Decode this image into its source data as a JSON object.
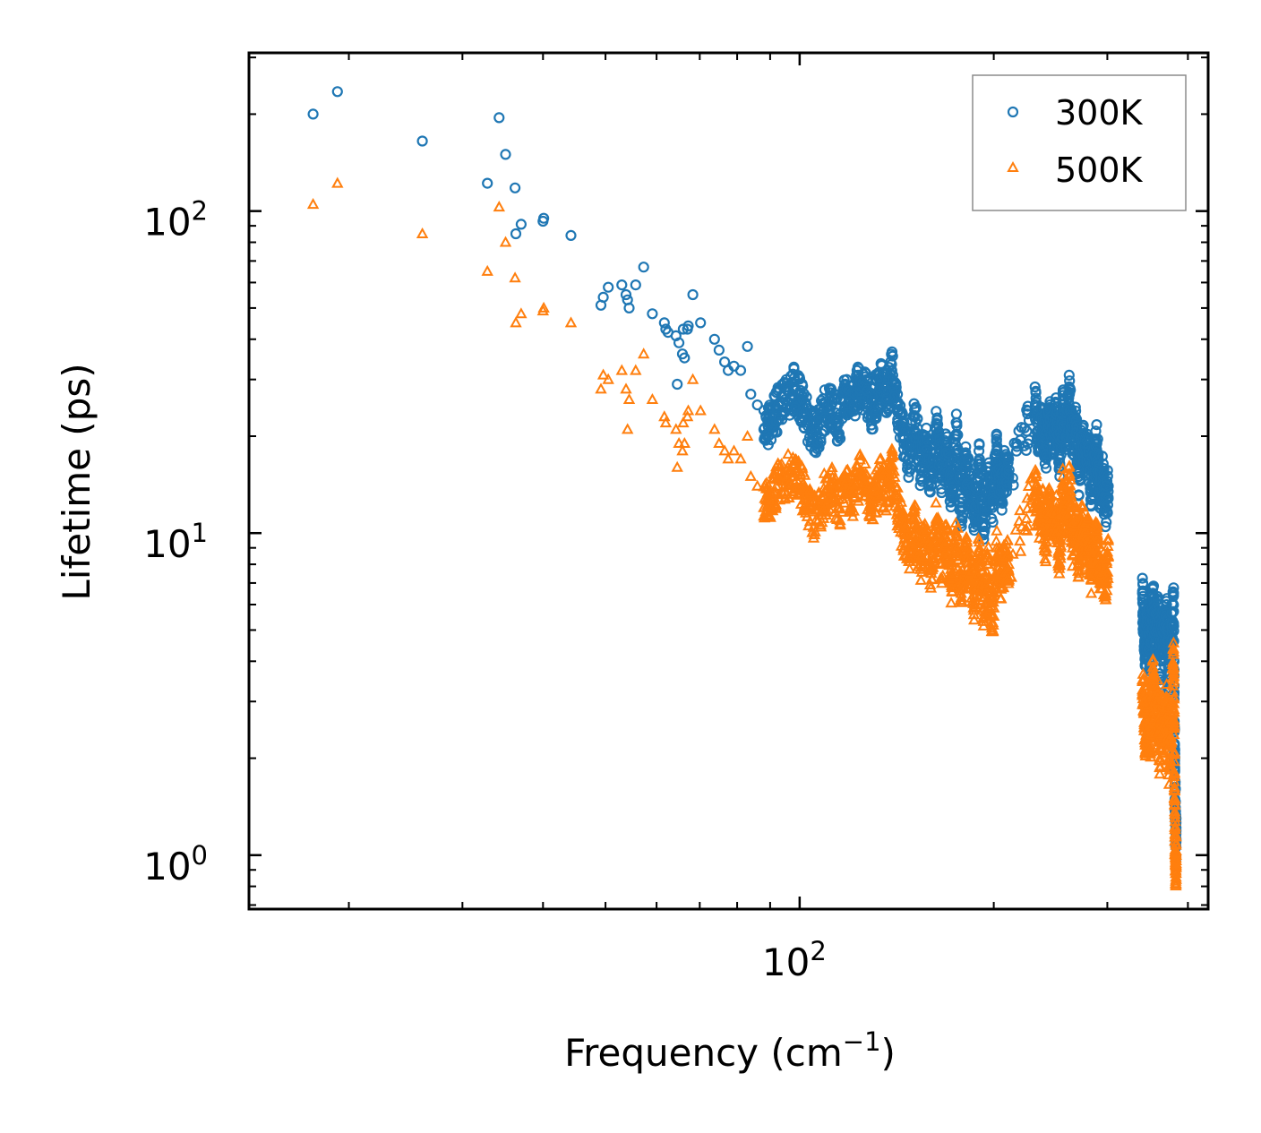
{
  "chart_data": {
    "type": "scatter",
    "scale": {
      "x": "log",
      "y": "log"
    },
    "xlabel": {
      "base": "Frequency (cm",
      "sup": "−1",
      "tail": ")"
    },
    "ylabel": "Lifetime (ps)",
    "xlim": [
      14,
      430
    ],
    "ylim": [
      0.68,
      310
    ],
    "x_major_ticks": [
      {
        "value": 100,
        "base": "10",
        "exp": "2"
      }
    ],
    "y_major_ticks": [
      {
        "value": 1,
        "base": "10",
        "exp": "0"
      },
      {
        "value": 10,
        "base": "10",
        "exp": "1"
      },
      {
        "value": 100,
        "base": "10",
        "exp": "2"
      }
    ],
    "legend": {
      "position": "top-right",
      "entries": [
        "300K",
        "500K"
      ]
    },
    "series": [
      {
        "name": "300K",
        "marker": "circle",
        "color": "#1f77b4",
        "points": [
          [
            17.6,
            200
          ],
          [
            19.2,
            235
          ],
          [
            26.0,
            165
          ],
          [
            32.8,
            122
          ],
          [
            34.2,
            195
          ],
          [
            35.0,
            150
          ],
          [
            36.2,
            118
          ],
          [
            36.3,
            85
          ],
          [
            37.0,
            91
          ],
          [
            40.0,
            93
          ],
          [
            40.1,
            95
          ],
          [
            44.2,
            84
          ],
          [
            49.2,
            51
          ],
          [
            49.6,
            54
          ],
          [
            50.5,
            58
          ],
          [
            53.0,
            59
          ],
          [
            53.8,
            55
          ],
          [
            54.1,
            53
          ],
          [
            54.4,
            50
          ],
          [
            55.7,
            59
          ],
          [
            57.3,
            67
          ],
          [
            59.1,
            48
          ],
          [
            61.7,
            45
          ],
          [
            62.0,
            43
          ],
          [
            62.5,
            42
          ],
          [
            64.6,
            29
          ],
          [
            64.3,
            41
          ],
          [
            65.0,
            39
          ],
          [
            66.0,
            43
          ],
          [
            67.0,
            43
          ],
          [
            66.3,
            35
          ],
          [
            65.8,
            36
          ],
          [
            67.2,
            44
          ],
          [
            68.3,
            55
          ],
          [
            70.2,
            45
          ],
          [
            73.8,
            40
          ],
          [
            75.0,
            37
          ],
          [
            76.5,
            34
          ],
          [
            77.5,
            32
          ],
          [
            79.1,
            33
          ],
          [
            81.0,
            32
          ],
          [
            83.0,
            38
          ],
          [
            84.0,
            27
          ],
          [
            86.0,
            25
          ],
          [
            88.0,
            21
          ],
          [
            90.0,
            22
          ],
          [
            92.0,
            24
          ],
          [
            95.0,
            26
          ],
          [
            98.0,
            28
          ],
          [
            100.5,
            26
          ],
          [
            103.0,
            22
          ],
          [
            106.0,
            20
          ],
          [
            109.0,
            24
          ],
          [
            112.0,
            25
          ],
          [
            115.0,
            22
          ],
          [
            118.0,
            27
          ],
          [
            121.0,
            26
          ],
          [
            124.0,
            29
          ],
          [
            127.0,
            27
          ],
          [
            130.0,
            24
          ],
          [
            133.0,
            30
          ],
          [
            136.0,
            26
          ],
          [
            139.0,
            32
          ],
          [
            142.0,
            25
          ],
          [
            145.0,
            20
          ],
          [
            148.0,
            17
          ],
          [
            151.0,
            23
          ],
          [
            154.0,
            16
          ],
          [
            157.0,
            19
          ],
          [
            160.0,
            14
          ],
          [
            163.0,
            21
          ],
          [
            166.0,
            15
          ],
          [
            169.0,
            18
          ],
          [
            172.0,
            13
          ],
          [
            175.0,
            20
          ],
          [
            178.0,
            12
          ],
          [
            181.0,
            16
          ],
          [
            184.0,
            14
          ],
          [
            187.0,
            11
          ],
          [
            190.0,
            17
          ],
          [
            193.0,
            10
          ],
          [
            196.0,
            15
          ],
          [
            199.0,
            12
          ],
          [
            202.0,
            18
          ],
          [
            205.0,
            13
          ],
          [
            208.0,
            16
          ],
          [
            211.0,
            15
          ],
          [
            232.0,
            25
          ],
          [
            235.0,
            20
          ],
          [
            238.0,
            22
          ],
          [
            241.0,
            18
          ],
          [
            244.0,
            24
          ],
          [
            247.0,
            19
          ],
          [
            250.0,
            23
          ],
          [
            253.0,
            17
          ],
          [
            256.0,
            25
          ],
          [
            259.0,
            20
          ],
          [
            262.0,
            27
          ],
          [
            265.0,
            18
          ],
          [
            268.0,
            22
          ],
          [
            271.0,
            15
          ],
          [
            274.0,
            20
          ],
          [
            277.0,
            17
          ],
          [
            280.0,
            19
          ],
          [
            283.0,
            14
          ],
          [
            286.0,
            16
          ],
          [
            289.0,
            19
          ],
          [
            292.0,
            13
          ],
          [
            295.0,
            15
          ],
          [
            298.0,
            12
          ],
          [
            301.0,
            14
          ],
          [
            340.0,
            6.5
          ],
          [
            342.0,
            5.0
          ],
          [
            344.0,
            4.2
          ],
          [
            347.0,
            5.5
          ],
          [
            350.0,
            4.0
          ],
          [
            353.0,
            6.4
          ],
          [
            356.0,
            4.8
          ],
          [
            359.0,
            6.0
          ],
          [
            362.0,
            3.8
          ],
          [
            365.0,
            5.2
          ],
          [
            368.0,
            4.4
          ],
          [
            371.0,
            5.8
          ],
          [
            374.0,
            3.5
          ],
          [
            377.0,
            4.6
          ],
          [
            380.0,
            6.4
          ],
          [
            381.0,
            2.5
          ],
          [
            382.0,
            1.6
          ],
          [
            383.0,
            1.1
          ],
          [
            383.5,
            1.3
          ]
        ]
      },
      {
        "name": "500K",
        "marker": "triangle",
        "color": "#ff7f0e",
        "points": [
          [
            17.6,
            105
          ],
          [
            19.2,
            122
          ],
          [
            26.0,
            85
          ],
          [
            32.8,
            65
          ],
          [
            34.2,
            103
          ],
          [
            35.0,
            80
          ],
          [
            36.2,
            62
          ],
          [
            36.3,
            45
          ],
          [
            37.0,
            48
          ],
          [
            40.0,
            49
          ],
          [
            40.1,
            50
          ],
          [
            44.2,
            45
          ],
          [
            49.2,
            28
          ],
          [
            49.6,
            31
          ],
          [
            50.5,
            30
          ],
          [
            53.0,
            32
          ],
          [
            53.8,
            28
          ],
          [
            54.1,
            21
          ],
          [
            54.4,
            26
          ],
          [
            55.7,
            32
          ],
          [
            57.3,
            36
          ],
          [
            59.1,
            26
          ],
          [
            61.7,
            23
          ],
          [
            62.0,
            22
          ],
          [
            64.6,
            16
          ],
          [
            64.3,
            21
          ],
          [
            65.0,
            19
          ],
          [
            66.0,
            22
          ],
          [
            67.0,
            23
          ],
          [
            66.3,
            19
          ],
          [
            65.8,
            18
          ],
          [
            67.2,
            24
          ],
          [
            68.3,
            30
          ],
          [
            70.2,
            24
          ],
          [
            73.8,
            21
          ],
          [
            75.0,
            19
          ],
          [
            76.5,
            18
          ],
          [
            77.5,
            17
          ],
          [
            79.1,
            18
          ],
          [
            81.0,
            17
          ],
          [
            83.0,
            20
          ],
          [
            84.0,
            15
          ],
          [
            86.0,
            14
          ],
          [
            88.0,
            12
          ],
          [
            90.0,
            13
          ],
          [
            92.0,
            14
          ],
          [
            95.0,
            15
          ],
          [
            98.0,
            15
          ],
          [
            100.5,
            14
          ],
          [
            103.0,
            12
          ],
          [
            106.0,
            11
          ],
          [
            109.0,
            13
          ],
          [
            112.0,
            14
          ],
          [
            115.0,
            12
          ],
          [
            118.0,
            14
          ],
          [
            121.0,
            13
          ],
          [
            124.0,
            15
          ],
          [
            127.0,
            14
          ],
          [
            130.0,
            12
          ],
          [
            133.0,
            15
          ],
          [
            136.0,
            13
          ],
          [
            139.0,
            16
          ],
          [
            142.0,
            12
          ],
          [
            145.0,
            10
          ],
          [
            148.0,
            9
          ],
          [
            151.0,
            11
          ],
          [
            154.0,
            8
          ],
          [
            157.0,
            10
          ],
          [
            160.0,
            7.5
          ],
          [
            163.0,
            11
          ],
          [
            166.0,
            8
          ],
          [
            169.0,
            9.5
          ],
          [
            172.0,
            7
          ],
          [
            175.0,
            10
          ],
          [
            178.0,
            6.5
          ],
          [
            181.0,
            8.5
          ],
          [
            184.0,
            7.5
          ],
          [
            187.0,
            6
          ],
          [
            190.0,
            9
          ],
          [
            193.0,
            5.5
          ],
          [
            196.0,
            8
          ],
          [
            199.0,
            5
          ],
          [
            202.0,
            9
          ],
          [
            205.0,
            7
          ],
          [
            208.0,
            8.5
          ],
          [
            211.0,
            8
          ],
          [
            232.0,
            14
          ],
          [
            235.0,
            11
          ],
          [
            238.0,
            12
          ],
          [
            241.0,
            9
          ],
          [
            244.0,
            13
          ],
          [
            247.0,
            10
          ],
          [
            250.0,
            12
          ],
          [
            253.0,
            8
          ],
          [
            256.0,
            14
          ],
          [
            259.0,
            10
          ],
          [
            262.0,
            15
          ],
          [
            265.0,
            9
          ],
          [
            268.0,
            12
          ],
          [
            271.0,
            8
          ],
          [
            274.0,
            11
          ],
          [
            277.0,
            9
          ],
          [
            280.0,
            10
          ],
          [
            283.0,
            7.5
          ],
          [
            286.0,
            9
          ],
          [
            289.0,
            10
          ],
          [
            292.0,
            7
          ],
          [
            295.0,
            8
          ],
          [
            298.0,
            7
          ],
          [
            301.0,
            8.5
          ],
          [
            340.0,
            3.5
          ],
          [
            342.0,
            2.8
          ],
          [
            344.0,
            2.3
          ],
          [
            347.0,
            3.0
          ],
          [
            350.0,
            2.2
          ],
          [
            353.0,
            3.5
          ],
          [
            356.0,
            2.6
          ],
          [
            359.0,
            3.2
          ],
          [
            362.0,
            2.0
          ],
          [
            365.0,
            2.8
          ],
          [
            368.0,
            2.4
          ],
          [
            371.0,
            3.1
          ],
          [
            374.0,
            1.9
          ],
          [
            377.0,
            2.5
          ],
          [
            380.0,
            4.2
          ],
          [
            381.0,
            1.8
          ],
          [
            382.0,
            1.2
          ],
          [
            383.0,
            0.9
          ],
          [
            383.5,
            1.0
          ]
        ]
      }
    ]
  }
}
